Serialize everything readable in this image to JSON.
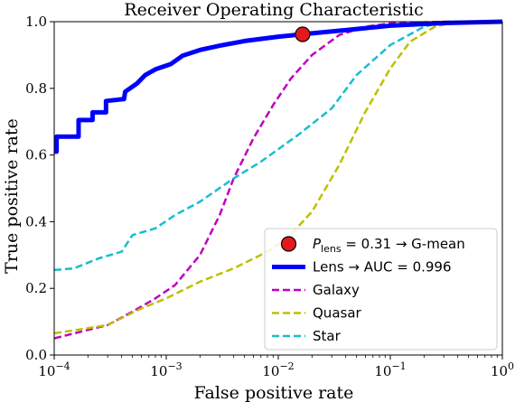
{
  "chart_data": {
    "type": "line",
    "title": "Receiver Operating Characteristic",
    "xlabel": "False positive rate",
    "ylabel": "True positive rate",
    "xscale": "log",
    "xlim": [
      0.0001,
      1
    ],
    "ylim": [
      0,
      1.0
    ],
    "x_ticks": [
      {
        "value": 0.0001,
        "base": "10",
        "exp": "−4"
      },
      {
        "value": 0.001,
        "base": "10",
        "exp": "−3"
      },
      {
        "value": 0.01,
        "base": "10",
        "exp": "−2"
      },
      {
        "value": 0.1,
        "base": "10",
        "exp": "−1"
      },
      {
        "value": 1,
        "base": "10",
        "exp": "0"
      }
    ],
    "y_ticks": [
      {
        "value": 0.0,
        "label": "0.0"
      },
      {
        "value": 0.2,
        "label": "0.2"
      },
      {
        "value": 0.4,
        "label": "0.4"
      },
      {
        "value": 0.6,
        "label": "0.6"
      },
      {
        "value": 0.8,
        "label": "0.8"
      },
      {
        "value": 1.0,
        "label": "1.0"
      }
    ],
    "grid": false,
    "legend_position": "lower-right",
    "marker": {
      "x": 0.0165,
      "y": 0.962,
      "color": "#e31a1c",
      "label_symbol": "P",
      "label_sub": "lens",
      "label_rest": " = 0.31 → G-mean"
    },
    "series": [
      {
        "name": "Lens → AUC = 0.996",
        "color": "#0000ff",
        "style": "solid",
        "width": 5,
        "points": [
          [
            0.0001,
            0.61
          ],
          [
            0.000105,
            0.61
          ],
          [
            0.000105,
            0.655
          ],
          [
            0.000165,
            0.655
          ],
          [
            0.000165,
            0.705
          ],
          [
            0.00022,
            0.705
          ],
          [
            0.00022,
            0.728
          ],
          [
            0.00029,
            0.728
          ],
          [
            0.00029,
            0.762
          ],
          [
            0.00042,
            0.768
          ],
          [
            0.00043,
            0.79
          ],
          [
            0.00055,
            0.815
          ],
          [
            0.00065,
            0.84
          ],
          [
            0.0008,
            0.857
          ],
          [
            0.0011,
            0.873
          ],
          [
            0.0014,
            0.898
          ],
          [
            0.002,
            0.915
          ],
          [
            0.003,
            0.928
          ],
          [
            0.005,
            0.942
          ],
          [
            0.01,
            0.955
          ],
          [
            0.02,
            0.965
          ],
          [
            0.05,
            0.978
          ],
          [
            0.1,
            0.988
          ],
          [
            0.3,
            0.996
          ],
          [
            1,
            1.0
          ]
        ]
      },
      {
        "name": "Galaxy",
        "color": "#bf00bf",
        "style": "dashed",
        "width": 2.5,
        "points": [
          [
            0.0001,
            0.05
          ],
          [
            0.0003,
            0.09
          ],
          [
            0.0005,
            0.13
          ],
          [
            0.0008,
            0.17
          ],
          [
            0.0012,
            0.21
          ],
          [
            0.002,
            0.3
          ],
          [
            0.003,
            0.42
          ],
          [
            0.004,
            0.53
          ],
          [
            0.006,
            0.65
          ],
          [
            0.009,
            0.75
          ],
          [
            0.013,
            0.83
          ],
          [
            0.02,
            0.9
          ],
          [
            0.035,
            0.96
          ],
          [
            0.06,
            0.985
          ],
          [
            0.1,
            0.995
          ],
          [
            0.3,
            1.0
          ],
          [
            1,
            1.0
          ]
        ]
      },
      {
        "name": "Quasar",
        "color": "#bfbf00",
        "style": "dashed",
        "width": 2.5,
        "points": [
          [
            0.0001,
            0.065
          ],
          [
            0.0003,
            0.09
          ],
          [
            0.0006,
            0.14
          ],
          [
            0.001,
            0.17
          ],
          [
            0.002,
            0.22
          ],
          [
            0.004,
            0.26
          ],
          [
            0.008,
            0.31
          ],
          [
            0.012,
            0.35
          ],
          [
            0.02,
            0.43
          ],
          [
            0.035,
            0.57
          ],
          [
            0.06,
            0.73
          ],
          [
            0.1,
            0.86
          ],
          [
            0.15,
            0.94
          ],
          [
            0.25,
            0.985
          ],
          [
            0.4,
            1.0
          ],
          [
            1,
            1.0
          ]
        ]
      },
      {
        "name": "Star",
        "color": "#17becf",
        "style": "dashed",
        "width": 2.5,
        "points": [
          [
            0.0001,
            0.255
          ],
          [
            0.00015,
            0.26
          ],
          [
            0.00025,
            0.29
          ],
          [
            0.0004,
            0.31
          ],
          [
            0.0005,
            0.36
          ],
          [
            0.0008,
            0.38
          ],
          [
            0.0012,
            0.42
          ],
          [
            0.002,
            0.46
          ],
          [
            0.004,
            0.53
          ],
          [
            0.007,
            0.58
          ],
          [
            0.015,
            0.66
          ],
          [
            0.03,
            0.74
          ],
          [
            0.05,
            0.84
          ],
          [
            0.1,
            0.93
          ],
          [
            0.2,
            0.985
          ],
          [
            0.3,
            1.0
          ],
          [
            1,
            1.0
          ]
        ]
      }
    ]
  }
}
